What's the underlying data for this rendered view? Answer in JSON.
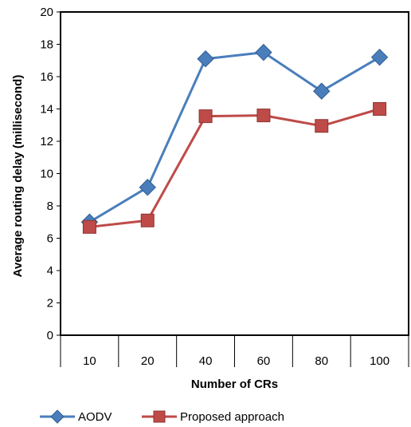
{
  "chart_data": {
    "type": "line",
    "categories": [
      "10",
      "20",
      "40",
      "60",
      "80",
      "100"
    ],
    "series": [
      {
        "name": "AODV",
        "values": [
          7.0,
          9.15,
          17.1,
          17.5,
          15.1,
          17.2
        ],
        "color": "#4a7ebb",
        "marker": "diamond"
      },
      {
        "name": "Proposed approach",
        "values": [
          6.7,
          7.1,
          13.55,
          13.6,
          12.95,
          14.0
        ],
        "color": "#be4b48",
        "marker": "square"
      }
    ],
    "xlabel": "Number of CRs",
    "ylabel": "Average routing delay (millisecond)",
    "ylim": [
      0,
      20
    ],
    "yticks": [
      "0",
      "2",
      "4",
      "6",
      "8",
      "10",
      "12",
      "14",
      "16",
      "18",
      "20"
    ],
    "grid": false,
    "legend_position": "bottom"
  }
}
